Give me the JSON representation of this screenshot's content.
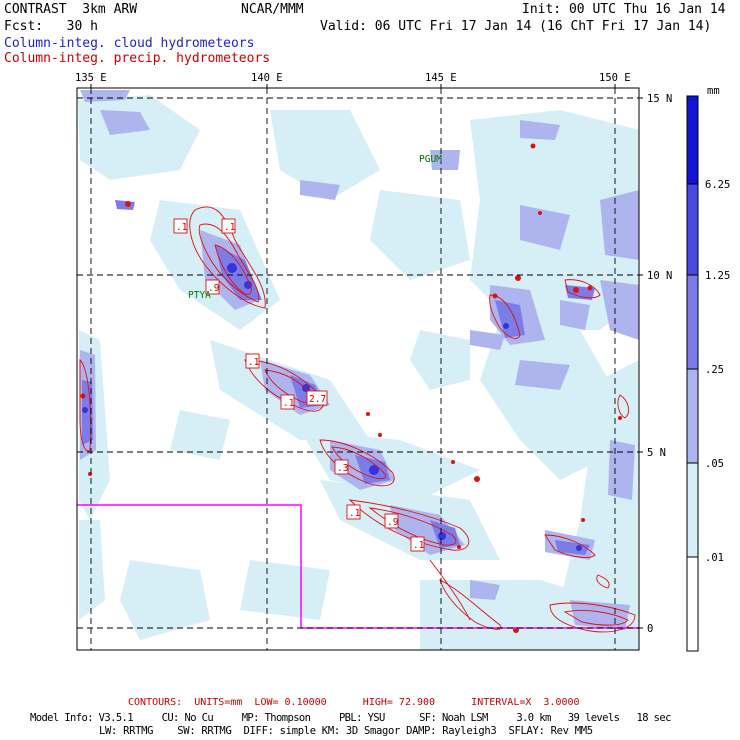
{
  "header": {
    "model": "CONTRAST  3km ARW",
    "institution": "NCAR/MMM",
    "init": "Init: 00 UTC Thu 16 Jan 14",
    "fcst": "Fcst:   30 h",
    "valid": "Valid: 06 UTC Fri 17 Jan 14 (16 ChT Fri 17 Jan 14)",
    "field_cloud": "Column-integ. cloud hydrometeors",
    "field_precip": "Column-integ. precip. hydrometeors"
  },
  "axes": {
    "lon_labels": [
      "135 E",
      "140 E",
      "145 E",
      "150 E"
    ],
    "lat_labels": [
      "15 N",
      "10 N",
      "5 N",
      "0"
    ]
  },
  "places": [
    "PGUM",
    "PTYA"
  ],
  "colorbar": {
    "unit": "mm",
    "levels": [
      "6.25",
      "1.25",
      ".25",
      ".05",
      ".01"
    ],
    "colors": [
      "#1414d4",
      "#4848e4",
      "#7c7ce8",
      "#aeb4ee",
      "#d6eef6",
      "#ffffff"
    ]
  },
  "contour_labels": [
    ".1",
    ".1",
    ".9",
    ".1",
    ".1",
    "2.7",
    ".3",
    ".1",
    ".9",
    ".1"
  ],
  "footer": {
    "contours": "CONTOURS:  UNITS=mm  LOW= 0.10000      HIGH= 72.900      INTERVAL=X  3.0000",
    "model_info": "Model Info: V3.5.1     CU: No Cu     MP: Thompson     PBL: YSU      SF: Noah LSM     3.0 km   39 levels   18 sec",
    "model_info2": "LW: RRTMG    SW: RRTMG  DIFF: simple KM: 3D Smagor DAMP: Rayleigh3  SFLAY: Rev MM5"
  }
}
